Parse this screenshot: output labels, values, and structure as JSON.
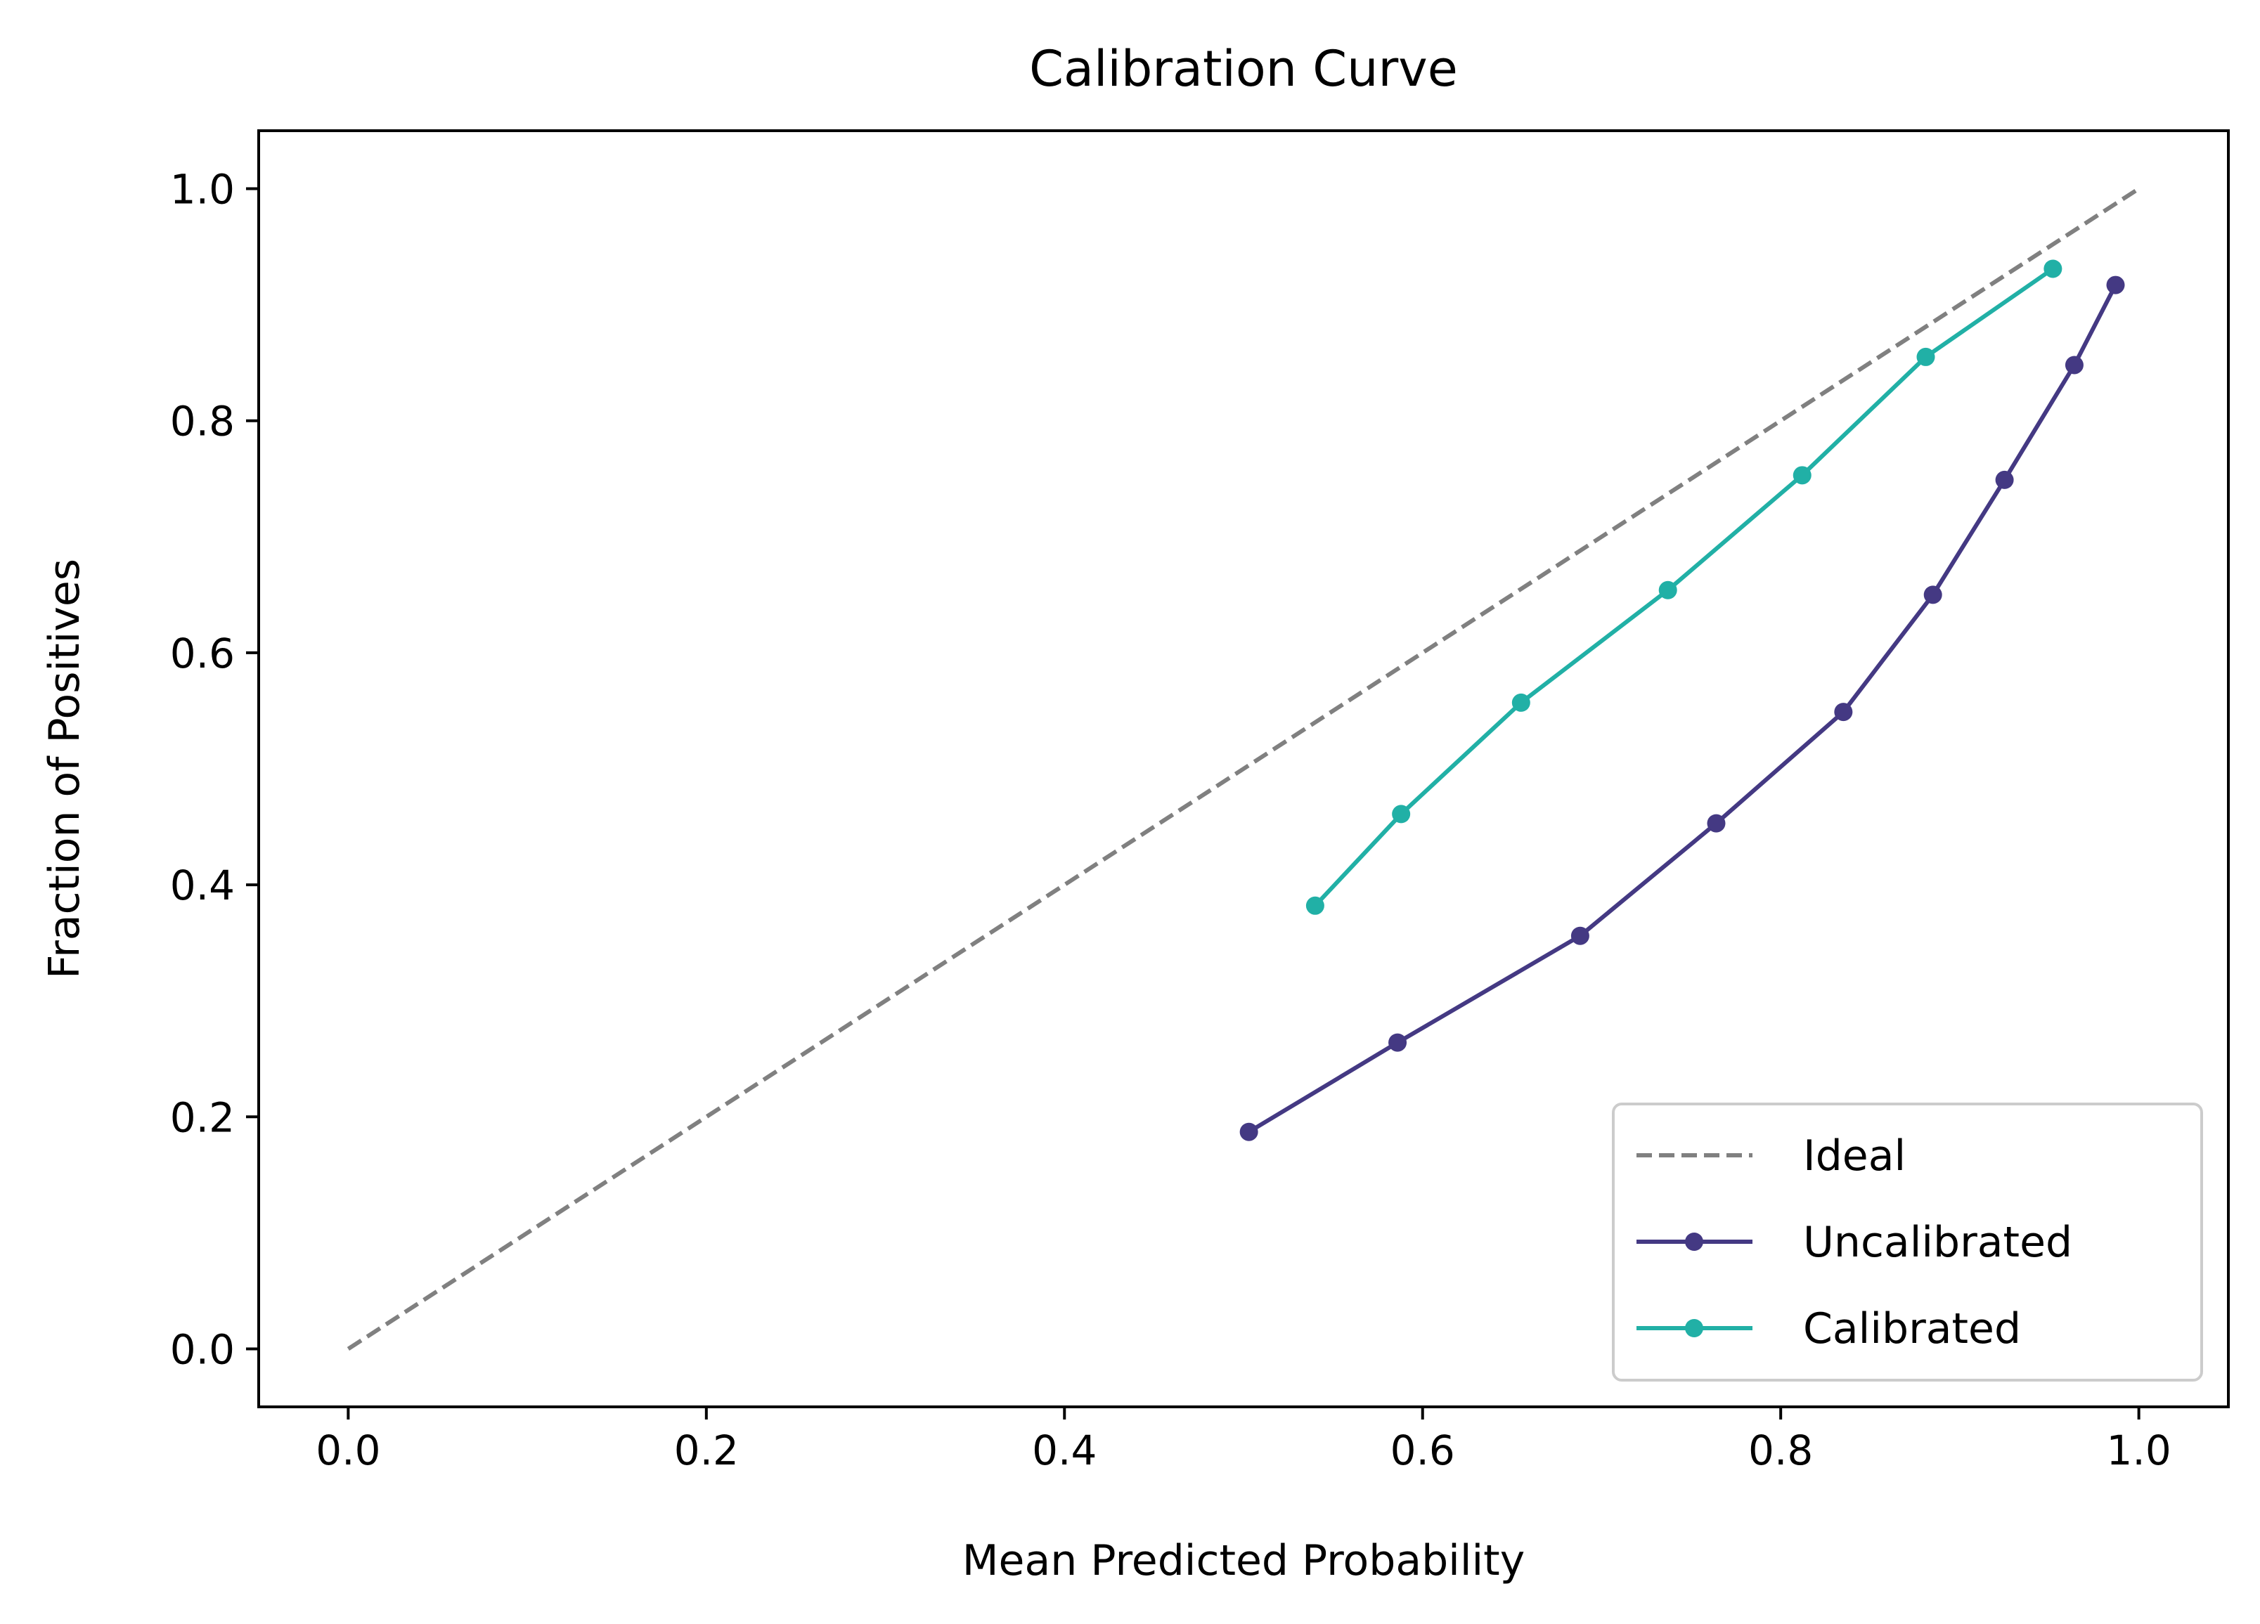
{
  "chart_data": {
    "type": "line",
    "title": "Calibration Curve",
    "xlabel": "Mean Predicted Probability",
    "ylabel": "Fraction of Positives",
    "xlim": [
      -0.05,
      1.05
    ],
    "ylim": [
      -0.05,
      1.05
    ],
    "xticks": [
      "0.0",
      "0.2",
      "0.4",
      "0.6",
      "0.8",
      "1.0"
    ],
    "yticks": [
      "0.0",
      "0.2",
      "0.4",
      "0.6",
      "0.8",
      "1.0"
    ],
    "grid": false,
    "legend_position": "bottom-right",
    "series": [
      {
        "name": "Ideal",
        "style": "dashed",
        "markers": false,
        "color": "#808080",
        "x": [
          0.0,
          1.0
        ],
        "y": [
          0.0,
          1.0
        ]
      },
      {
        "name": "Uncalibrated",
        "style": "solid",
        "markers": true,
        "color": "#443983",
        "x": [
          0.503,
          0.586,
          0.688,
          0.764,
          0.835,
          0.885,
          0.925,
          0.964,
          0.987
        ],
        "y": [
          0.187,
          0.264,
          0.356,
          0.453,
          0.549,
          0.65,
          0.749,
          0.848,
          0.917
        ]
      },
      {
        "name": "Calibrated",
        "style": "solid",
        "markers": true,
        "color": "#21b0a6",
        "x": [
          0.54,
          0.588,
          0.655,
          0.737,
          0.812,
          0.881,
          0.952
        ],
        "y": [
          0.382,
          0.461,
          0.557,
          0.654,
          0.753,
          0.855,
          0.931
        ]
      }
    ]
  }
}
